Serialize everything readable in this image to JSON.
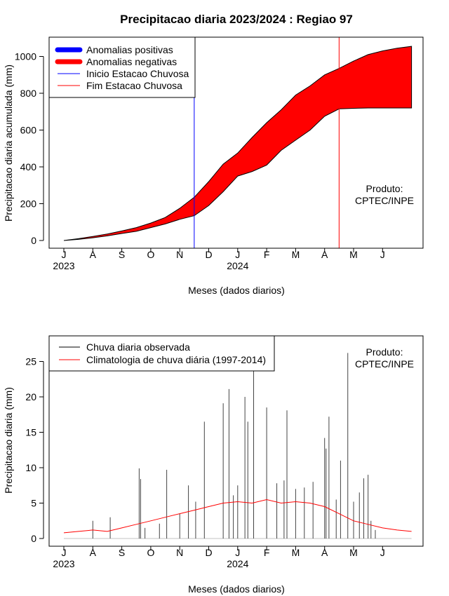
{
  "title": "Precipitacao diaria 2023/2024 : Regiao 97",
  "colors": {
    "positive": "#0000ff",
    "negative": "#ff0000",
    "onset": "#0000ff",
    "end": "#ff0000",
    "observed": "#000000",
    "climatology": "#ff0000"
  },
  "chart_data": [
    {
      "type": "area",
      "ylabel": "Precipitacao diaria acumulada (mm)",
      "xlabel": "Meses (dados diarios)",
      "ylim": [
        0,
        1100
      ],
      "yticks": [
        0,
        200,
        400,
        600,
        800,
        1000
      ],
      "month_ticks": [
        "J",
        "A",
        "S",
        "O",
        "N",
        "D",
        "J",
        "F",
        "M",
        "A",
        "M",
        "J"
      ],
      "year_labels": [
        {
          "text": "2023",
          "month_index": 0
        },
        {
          "text": "2024",
          "month_index": 6
        }
      ],
      "legend": {
        "placement": "top-left",
        "items": [
          {
            "label": "Anomalias positivas",
            "color": "#0000ff",
            "style": "thick"
          },
          {
            "label": "Anomalias negativas",
            "color": "#ff0000",
            "style": "thick"
          },
          {
            "label": "Inicio Estacao Chuvosa",
            "color": "#0000ff",
            "style": "thin"
          },
          {
            "label": "Fim Estacao Chuvosa",
            "color": "#ff0000",
            "style": "thin"
          }
        ]
      },
      "annotation": [
        "Produto:",
        "CPTEC/INPE"
      ],
      "onset_month": 4.5,
      "end_month": 9.5,
      "series": [
        {
          "name": "Climatology",
          "x": [
            0,
            0.5,
            1,
            1.5,
            2,
            2.5,
            3,
            3.5,
            4,
            4.5,
            5,
            5.5,
            6,
            6.5,
            7,
            7.5,
            8,
            8.5,
            9,
            9.5,
            10,
            10.5,
            11,
            11.5,
            12
          ],
          "y": [
            0,
            10,
            22,
            35,
            52,
            70,
            95,
            125,
            175,
            235,
            320,
            415,
            475,
            560,
            640,
            710,
            790,
            840,
            900,
            935,
            975,
            1010,
            1030,
            1045,
            1055
          ]
        },
        {
          "name": "Observed",
          "x": [
            0,
            0.5,
            1,
            1.5,
            2,
            2.5,
            3,
            3.5,
            4,
            4.5,
            5,
            5.5,
            6,
            6.5,
            7,
            7.5,
            8,
            8.5,
            9,
            9.5,
            10,
            10.5,
            11,
            11.5,
            12
          ],
          "y": [
            0,
            6,
            15,
            25,
            38,
            50,
            70,
            90,
            115,
            135,
            190,
            265,
            350,
            375,
            410,
            490,
            545,
            600,
            675,
            715,
            718,
            720,
            720,
            720,
            720
          ]
        }
      ]
    },
    {
      "type": "bar",
      "ylabel": "Precipitacao diaria (mm)",
      "xlabel": "Meses (dados diarios)",
      "ylim": [
        0,
        28
      ],
      "yticks": [
        0,
        5,
        10,
        15,
        20,
        25
      ],
      "month_ticks": [
        "J",
        "A",
        "S",
        "O",
        "N",
        "D",
        "J",
        "F",
        "M",
        "A",
        "M",
        "J"
      ],
      "year_labels": [
        {
          "text": "2023",
          "month_index": 0
        },
        {
          "text": "2024",
          "month_index": 6
        }
      ],
      "legend": {
        "placement": "top-left",
        "items": [
          {
            "label": "Chuva diaria observada",
            "color": "#000000"
          },
          {
            "label": "Climatologia de chuva diária (1997-2014)",
            "color": "#ff0000"
          }
        ]
      },
      "annotation": [
        "Produto:",
        "CPTEC/INPE"
      ],
      "observed_spikes": [
        {
          "x": 1.0,
          "y": 2.5
        },
        {
          "x": 1.6,
          "y": 3.0
        },
        {
          "x": 2.6,
          "y": 9.9
        },
        {
          "x": 2.65,
          "y": 8.4
        },
        {
          "x": 2.8,
          "y": 1.5
        },
        {
          "x": 3.3,
          "y": 2.1
        },
        {
          "x": 3.55,
          "y": 9.7
        },
        {
          "x": 4.0,
          "y": 3.5
        },
        {
          "x": 4.3,
          "y": 7.5
        },
        {
          "x": 4.55,
          "y": 5.2
        },
        {
          "x": 4.85,
          "y": 16.5
        },
        {
          "x": 5.5,
          "y": 19.1
        },
        {
          "x": 5.7,
          "y": 21.1
        },
        {
          "x": 5.85,
          "y": 6.1
        },
        {
          "x": 6.0,
          "y": 7.5
        },
        {
          "x": 6.25,
          "y": 20.0
        },
        {
          "x": 6.35,
          "y": 16.5
        },
        {
          "x": 6.55,
          "y": 26.0
        },
        {
          "x": 7.0,
          "y": 18.5
        },
        {
          "x": 7.35,
          "y": 7.8
        },
        {
          "x": 7.6,
          "y": 8.2
        },
        {
          "x": 7.7,
          "y": 18.1
        },
        {
          "x": 8.0,
          "y": 7.0
        },
        {
          "x": 8.3,
          "y": 7.2
        },
        {
          "x": 8.6,
          "y": 8.0
        },
        {
          "x": 9.0,
          "y": 14.2
        },
        {
          "x": 9.05,
          "y": 12.7
        },
        {
          "x": 9.15,
          "y": 17.2
        },
        {
          "x": 9.4,
          "y": 5.5
        },
        {
          "x": 9.55,
          "y": 11.0
        },
        {
          "x": 9.8,
          "y": 26.2
        },
        {
          "x": 10.0,
          "y": 5.2
        },
        {
          "x": 10.2,
          "y": 6.5
        },
        {
          "x": 10.35,
          "y": 8.5
        },
        {
          "x": 10.5,
          "y": 9.0
        },
        {
          "x": 10.6,
          "y": 2.5
        },
        {
          "x": 10.75,
          "y": 1.2
        }
      ],
      "climatology": {
        "x": [
          0,
          0.5,
          1,
          1.5,
          2,
          2.5,
          3,
          3.5,
          4,
          4.5,
          5,
          5.5,
          6,
          6.5,
          7,
          7.5,
          8,
          8.5,
          9,
          9.5,
          10,
          10.5,
          11,
          11.5,
          12
        ],
        "y": [
          0.8,
          1.0,
          1.2,
          1.0,
          1.5,
          2.0,
          2.5,
          3.0,
          3.5,
          4.0,
          4.5,
          5.0,
          5.2,
          5.0,
          5.5,
          5.0,
          5.2,
          5.0,
          4.5,
          3.5,
          2.5,
          2.0,
          1.5,
          1.2,
          1.0
        ]
      }
    }
  ]
}
